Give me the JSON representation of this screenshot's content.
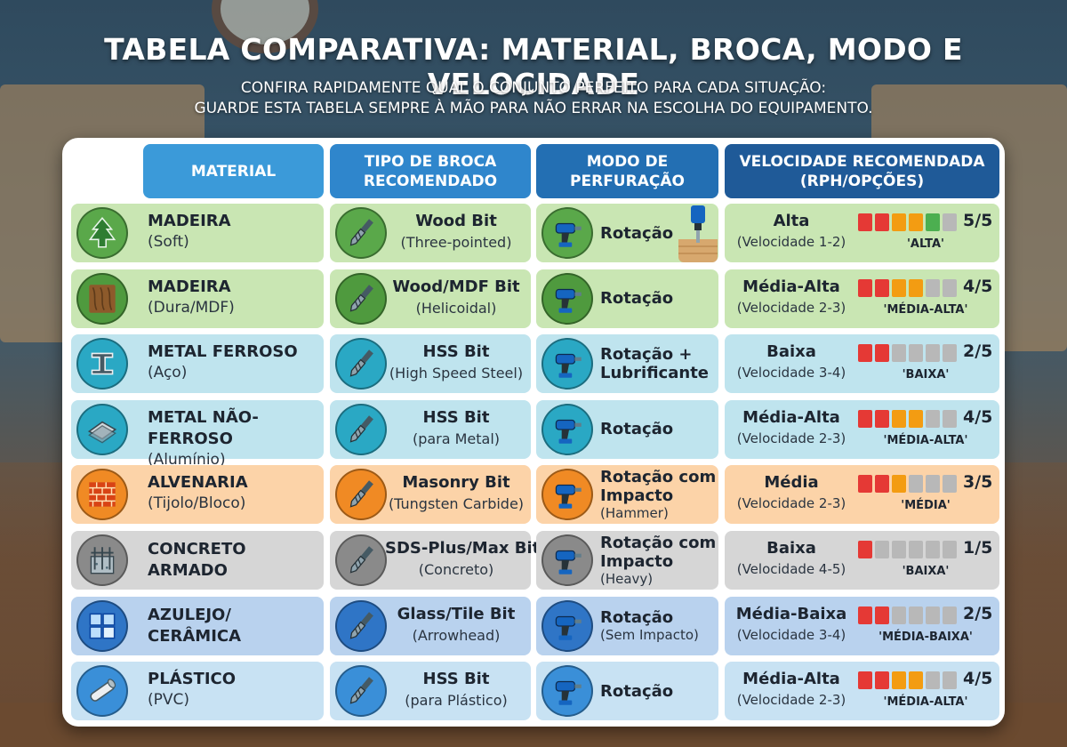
{
  "header": {
    "title": "TABELA COMPARATIVA: MATERIAL, BROCA, MODO E VELOCIDADE",
    "subtitle_line1": "CONFIRA RAPIDAMENTE QUAL O CONJUNTO PERFEITO PARA CADA SITUAÇÃO:",
    "subtitle_line2": "GUARDE ESTA TABELA SEMPRE À MÃO PARA NÃO ERRAR NA ESCOLHA DO EQUIPAMENTO."
  },
  "columns": {
    "material": "MATERIAL",
    "broca": "TIPO DE BROCA\nRECOMENDADO",
    "modo": "MODO DE\nPERFURAÇÃO",
    "velocidade": "VELOCIDADE RECOMENDADA\n(RPH/OPÇÕES)"
  },
  "colors": {
    "green_row": "#c9e6b3",
    "cyan_row": "#bfe4ee",
    "orange_row": "#fcd3a8",
    "gray_row": "#d6d6d6",
    "blue_row": "#b9d2ee",
    "light_blue_row": "#c8e2f3",
    "meter_red": "#e53935",
    "meter_orange": "#f39c12",
    "meter_green": "#4caf50",
    "meter_empty": "#b8b8b8"
  },
  "rows": [
    {
      "material": "MADEIRA",
      "material_sub": "(Soft)",
      "material_icon": "pine-tree-icon",
      "broca": "Wood Bit",
      "broca_sub": "(Three-pointed)",
      "broca_icon": "spade-bit-icon",
      "modo": "Rotação",
      "modo_sub": "",
      "modo_icon": "drill-rotation-icon",
      "vel": "Alta",
      "vel_sub": "(Velocidade 1-2)",
      "score": "5/5",
      "level": 5,
      "tag": "'ALTA'"
    },
    {
      "material": "MADEIRA",
      "material_sub": "(Dura/MDF)",
      "material_icon": "wood-grain-icon",
      "broca": "Wood/MDF Bit",
      "broca_sub": "(Helicoidal)",
      "broca_icon": "twist-bit-icon",
      "modo": "Rotação",
      "modo_sub": "",
      "modo_icon": "drill-icon",
      "vel": "Média-Alta",
      "vel_sub": "(Velocidade 2-3)",
      "score": "4/5",
      "level": 4,
      "tag": "'MÉDIA-ALTA'"
    },
    {
      "material": "METAL FERROSO",
      "material_sub": "(Aço)",
      "material_icon": "steel-beam-icon",
      "broca": "HSS Bit",
      "broca_sub": "(High Speed Steel)",
      "broca_icon": "hss-bit-icon",
      "modo": "Rotação +\nLubrificante",
      "modo_sub": "",
      "modo_icon": "drill-oil-icon",
      "vel": "Baixa",
      "vel_sub": "(Velocidade 3-4)",
      "score": "2/5",
      "level": 2,
      "tag": "'BAIXA'"
    },
    {
      "material": "METAL NÃO-FERROSO",
      "material_sub": "(Alumínio)",
      "material_icon": "metal-sheet-icon",
      "broca": "HSS Bit",
      "broca_sub": "(para Metal)",
      "broca_icon": "metal-bit-icon",
      "modo": "Rotação",
      "modo_sub": "",
      "modo_icon": "drill-icon",
      "vel": "Média-Alta",
      "vel_sub": "(Velocidade 2-3)",
      "score": "4/5",
      "level": 4,
      "tag": "'MÉDIA-ALTA'"
    },
    {
      "material": "ALVENARIA",
      "material_sub": "(Tijolo/Bloco)",
      "material_icon": "brick-wall-icon",
      "broca": "Masonry Bit",
      "broca_sub": "(Tungsten Carbide)",
      "broca_icon": "masonry-bit-icon",
      "modo": "Rotação com\nImpacto",
      "modo_sub": "(Hammer)",
      "modo_icon": "hammer-drill-icon",
      "vel": "Média",
      "vel_sub": "(Velocidade 2-3)",
      "score": "3/5",
      "level": 3,
      "tag": "'MÉDIA'"
    },
    {
      "material": "CONCRETO\nARMADO",
      "material_sub": "",
      "material_icon": "concrete-block-icon",
      "broca": "SDS-Plus/Max Bit",
      "broca_sub": "(Concreto)",
      "broca_icon": "sds-bit-icon",
      "modo": "Rotação com\nImpacto",
      "modo_sub": "(Heavy)",
      "modo_icon": "rotary-hammer-icon",
      "vel": "Baixa",
      "vel_sub": "(Velocidade 4-5)",
      "score": "1/5",
      "level": 1,
      "tag": "'BAIXA'"
    },
    {
      "material": "AZULEJO/\nCERÂMICA",
      "material_sub": "",
      "material_icon": "tile-icon",
      "broca": "Glass/Tile Bit",
      "broca_sub": "(Arrowhead)",
      "broca_icon": "arrowhead-bit-icon",
      "modo": "Rotação",
      "modo_sub": "(Sem Impacto)",
      "modo_icon": "drill-icon",
      "vel": "Média-Baixa",
      "vel_sub": "(Velocidade 3-4)",
      "score": "2/5",
      "level": 2,
      "tag": "'MÉDIA-BAIXA'"
    },
    {
      "material": "PLÁSTICO",
      "material_sub": "(PVC)",
      "material_icon": "pvc-pipe-icon",
      "broca": "HSS Bit",
      "broca_sub": "(para Plástico)",
      "broca_icon": "plastic-bit-icon",
      "modo": "Rotação",
      "modo_sub": "",
      "modo_icon": "drill-icon",
      "vel": "Média-Alta",
      "vel_sub": "(Velocidade 2-3)",
      "score": "4/5",
      "level": 4,
      "tag": "'MÉDIA-ALTA'"
    }
  ]
}
